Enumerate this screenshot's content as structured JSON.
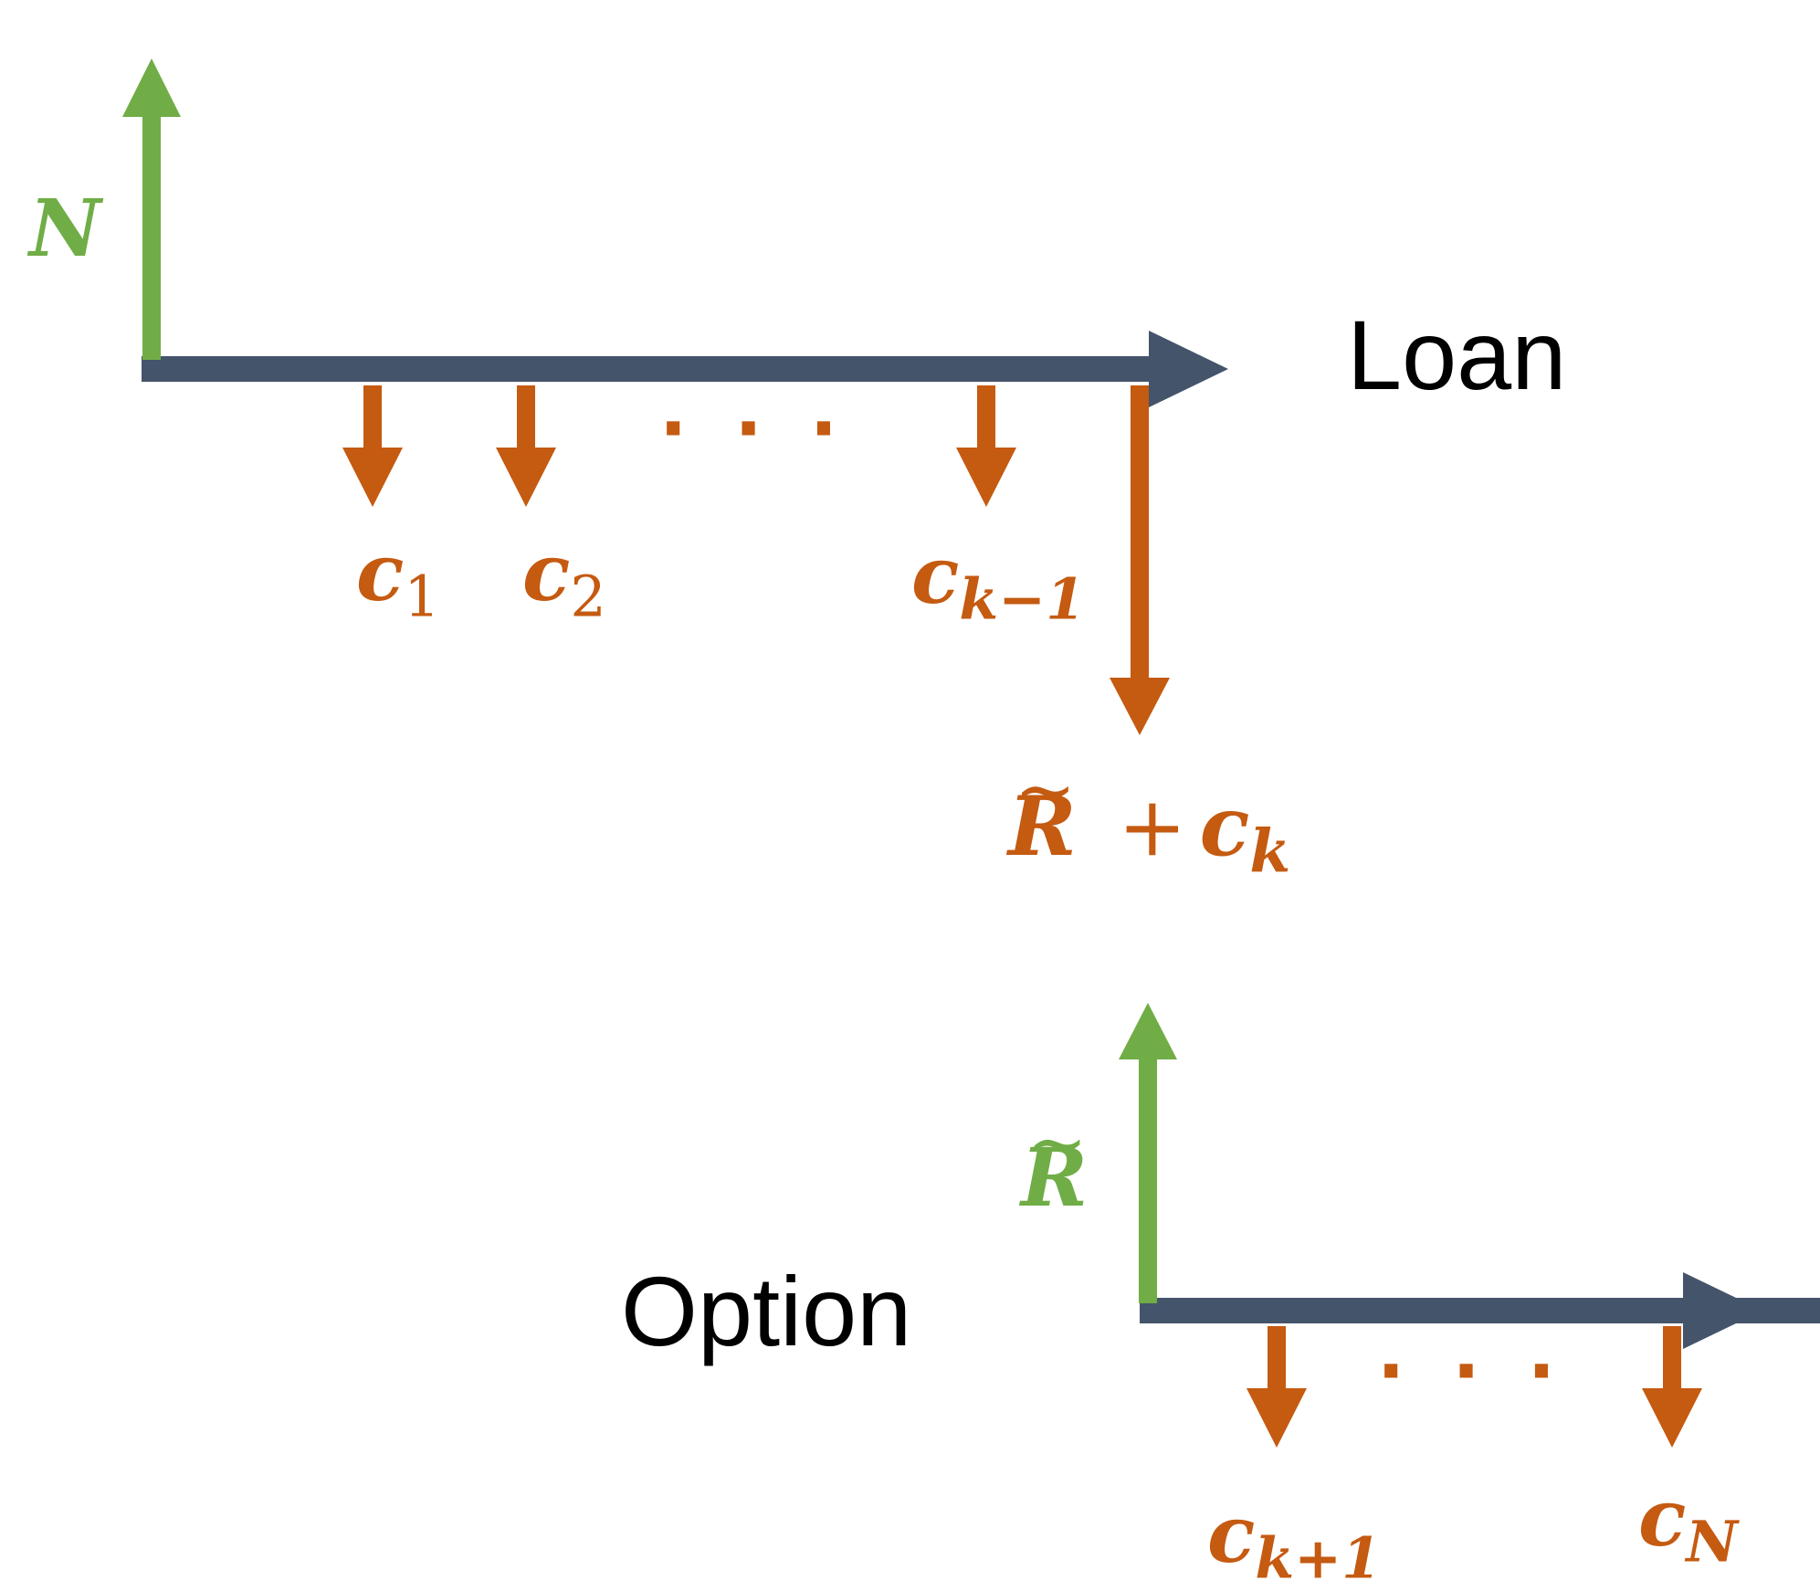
{
  "colors": {
    "timeline": "#44546a",
    "inflow": "#70ad47",
    "outflow": "#c55a11",
    "text": "#000000"
  },
  "loan": {
    "title": "Loan",
    "inflow_label": "N",
    "outflows": [
      {
        "sym": "c",
        "sub": "1"
      },
      {
        "sym": "c",
        "sub": "2"
      },
      {
        "sym": "c",
        "sub": "k−1"
      }
    ],
    "ellipsis": "···",
    "final_outflow": {
      "sym1": "R",
      "op": "+",
      "sym2": "c",
      "sub": "k"
    }
  },
  "option": {
    "title": "Option",
    "inflow_label": "R",
    "outflows": [
      {
        "sym": "c",
        "sub": "k+1"
      },
      {
        "sym": "c",
        "sub": "N"
      }
    ],
    "ellipsis": "···"
  }
}
